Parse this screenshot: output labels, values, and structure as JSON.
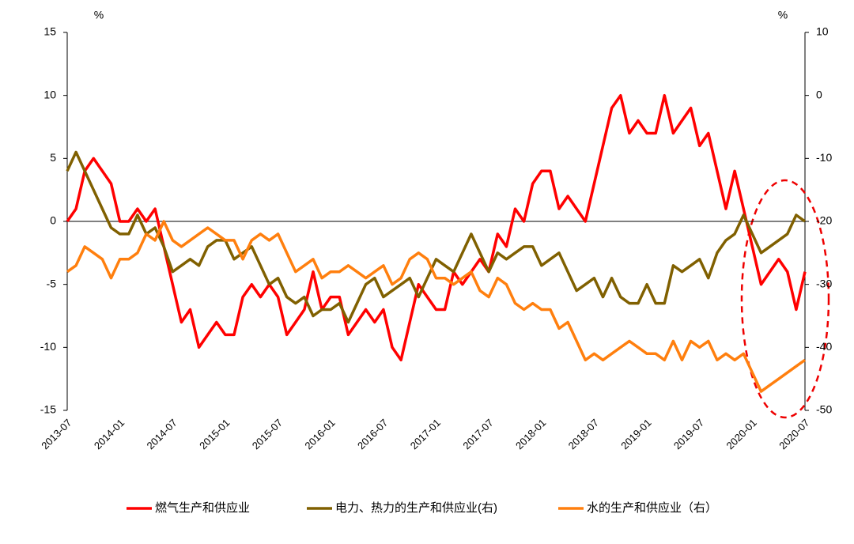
{
  "chart_data": {
    "type": "line",
    "ylabel": "%",
    "y2label": "%",
    "categories": [
      "2013-07",
      null,
      null,
      null,
      null,
      null,
      "2014-01",
      null,
      null,
      null,
      null,
      null,
      "2014-07",
      null,
      null,
      null,
      null,
      null,
      "2015-01",
      null,
      null,
      null,
      null,
      null,
      "2015-07",
      null,
      null,
      null,
      null,
      null,
      "2016-01",
      null,
      null,
      null,
      null,
      null,
      "2016-07",
      null,
      null,
      null,
      null,
      null,
      "2017-01",
      null,
      null,
      null,
      null,
      null,
      "2017-07",
      null,
      null,
      null,
      null,
      null,
      "2018-01",
      null,
      null,
      null,
      null,
      null,
      "2018-07",
      null,
      null,
      null,
      null,
      null,
      "2019-01",
      null,
      null,
      null,
      null,
      null,
      "2019-07",
      null,
      null,
      null,
      null,
      null,
      "2020-01",
      null,
      null,
      null,
      null,
      null,
      "2020-07"
    ],
    "ylim": [
      -15,
      15
    ],
    "yticks": [
      -15,
      -10,
      -5,
      0,
      5,
      10,
      15
    ],
    "y2lim": [
      -50,
      10
    ],
    "y2ticks": [
      -50,
      -40,
      -30,
      -20,
      -10,
      0,
      10
    ],
    "series": [
      {
        "name": "燃气生产和供应业",
        "color": "#ff0000",
        "values": [
          0,
          1,
          4,
          5,
          4,
          3,
          0,
          0,
          1,
          0,
          1,
          -2,
          -5,
          -8,
          -7,
          -10,
          -9,
          -8,
          -9,
          -9,
          -6,
          -5,
          -6,
          -5,
          -6,
          -9,
          -8,
          -7,
          -4,
          -7,
          -6,
          -6,
          -9,
          -8,
          -7,
          -8,
          -7,
          -10,
          -11,
          -8,
          -5,
          -6,
          -7,
          -7,
          -4,
          -5,
          -4,
          -3,
          -4,
          -1,
          -2,
          1,
          0,
          3,
          4,
          4,
          1,
          2,
          1,
          0,
          3,
          6,
          9,
          10,
          7,
          8,
          7,
          7,
          10,
          7,
          8,
          9,
          6,
          7,
          4,
          1,
          4,
          1,
          -2,
          -5,
          -4,
          -3,
          -4,
          -7,
          -4
        ]
      },
      {
        "name": "电力、热力的生产和供应业(右)",
        "color": "#806000",
        "axis": "y2",
        "values": [
          -12,
          -9,
          -12,
          -15,
          -18,
          -21,
          -22,
          -22,
          -19,
          -22,
          -21,
          -24,
          -28,
          -27,
          -26,
          -27,
          -24,
          -23,
          -23,
          -26,
          -25,
          -24,
          -27,
          -30,
          -29,
          -32,
          -33,
          -32,
          -35,
          -34,
          -34,
          -33,
          -36,
          -33,
          -30,
          -29,
          -32,
          -31,
          -30,
          -29,
          -32,
          -29,
          -26,
          -27,
          -28,
          -25,
          -22,
          -25,
          -28,
          -25,
          -26,
          -25,
          -24,
          -24,
          -27,
          -26,
          -25,
          -28,
          -31,
          -30,
          -29,
          -32,
          -29,
          -32,
          -33,
          -33,
          -30,
          -33,
          -33,
          -27,
          -28,
          -27,
          -26,
          -29,
          -25,
          -23,
          -22,
          -19,
          -22,
          -25,
          -24,
          -23,
          -22,
          -19,
          -20
        ]
      },
      {
        "name": "水的生产和供应业（右）",
        "color": "#ff7f0e",
        "axis": "y2",
        "values": [
          -28,
          -27,
          -24,
          -25,
          -26,
          -29,
          -26,
          -26,
          -25,
          -22,
          -23,
          -20,
          -23,
          -24,
          -23,
          -22,
          -21,
          -22,
          -23,
          -23,
          -26,
          -23,
          -22,
          -23,
          -22,
          -25,
          -28,
          -27,
          -26,
          -29,
          -28,
          -28,
          -27,
          -28,
          -29,
          -28,
          -27,
          -30,
          -29,
          -26,
          -25,
          -26,
          -29,
          -29,
          -30,
          -29,
          -28,
          -31,
          -32,
          -29,
          -30,
          -33,
          -34,
          -33,
          -34,
          -34,
          -37,
          -36,
          -39,
          -42,
          -41,
          -42,
          -41,
          -40,
          -39,
          -40,
          -41,
          -41,
          -42,
          -39,
          -42,
          -39,
          -40,
          -39,
          -42,
          -41,
          -42,
          -41,
          -44,
          -47,
          -46,
          -45,
          -44,
          -43,
          -42
        ]
      }
    ]
  }
}
